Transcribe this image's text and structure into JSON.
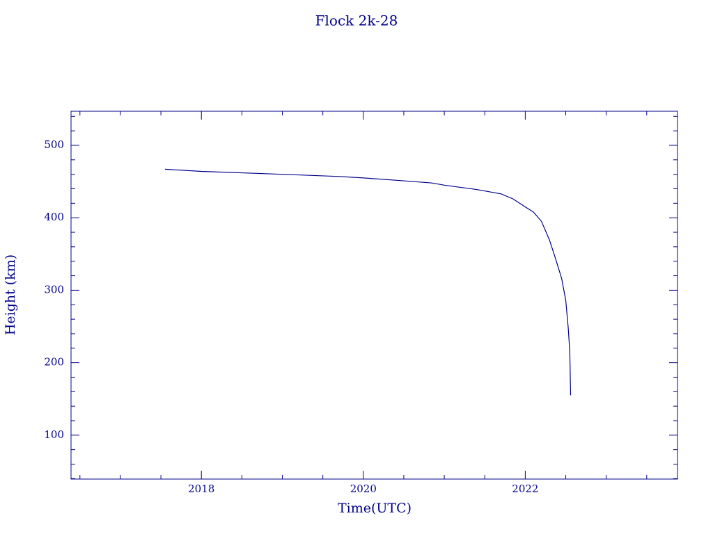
{
  "chart_data": {
    "type": "line",
    "title": "Flock 2k-28",
    "x_label": "Time(UTC)",
    "y_label": "Height (km)",
    "xlim": [
      2016.39,
      2023.88
    ],
    "ylim": [
      39.4,
      547
    ],
    "xticks": [
      2018,
      2020,
      2022
    ],
    "yticks": [
      100,
      200,
      300,
      400,
      500
    ],
    "xminorticks": [
      2016.5,
      2017,
      2017.5,
      2018.5,
      2019,
      2019.5,
      2020.5,
      2021,
      2021.5,
      2022.5,
      2023,
      2023.5
    ],
    "yminorticks": [
      40,
      60,
      80,
      120,
      140,
      160,
      180,
      220,
      240,
      260,
      280,
      320,
      340,
      360,
      380,
      420,
      440,
      460,
      480,
      520,
      540
    ],
    "color": "#00008b",
    "series": [
      {
        "color": "#00008b",
        "x": [
          2017.55,
          2018,
          2019,
          2019.7,
          2020,
          2020.5,
          2020.85,
          2021,
          2021.4,
          2021.7,
          2021.85,
          2022,
          2022.1,
          2022.2,
          2022.3,
          2022.37,
          2022.45,
          2022.5,
          2022.53,
          2022.55,
          2022.56
        ],
        "values": [
          467,
          464,
          460,
          457,
          455,
          451,
          448,
          445,
          439,
          433,
          426,
          415,
          408,
          395,
          369,
          345,
          316,
          286,
          249,
          215,
          155
        ]
      }
    ]
  }
}
